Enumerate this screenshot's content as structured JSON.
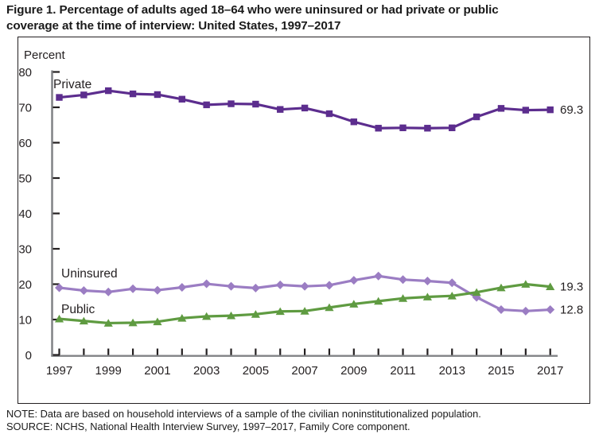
{
  "figure": {
    "title_line1": "Figure 1. Percentage of adults aged 18–64 who were uninsured or had private or public",
    "title_line2": "coverage at the time of interview: United States, 1997–2017",
    "note": "NOTE: Data are based on household interviews of a sample of the civilian noninstitutionalized population.",
    "source": "SOURCE: NCHS, National Health Interview Survey, 1997–2017, Family Core component."
  },
  "chart_data": {
    "type": "line",
    "y_axis_label": "Percent",
    "ylim": [
      0,
      80
    ],
    "yticks": [
      0,
      10,
      20,
      30,
      40,
      50,
      60,
      70,
      80
    ],
    "x": [
      1997,
      1998,
      1999,
      2000,
      2001,
      2002,
      2003,
      2004,
      2005,
      2006,
      2007,
      2008,
      2009,
      2010,
      2011,
      2012,
      2013,
      2014,
      2015,
      2016,
      2017
    ],
    "xtick_labels": [
      "1997",
      "1999",
      "2001",
      "2003",
      "2005",
      "2007",
      "2009",
      "2011",
      "2013",
      "2015",
      "2017"
    ],
    "grid": false,
    "legend_position": "inline-labels",
    "axis_color": "#808285",
    "tick_color": "#231f20",
    "text_color": "#231f20",
    "series": [
      {
        "name": "Private",
        "marker": "square",
        "color": "#5c2d8e",
        "end_label": "69.3",
        "values": [
          72.8,
          73.5,
          74.7,
          73.8,
          73.6,
          72.3,
          70.7,
          71.0,
          70.9,
          69.4,
          69.8,
          68.2,
          65.9,
          64.1,
          64.2,
          64.1,
          64.2,
          67.3,
          69.7,
          69.2,
          69.3
        ]
      },
      {
        "name": "Uninsured",
        "marker": "diamond",
        "color": "#9b7dc3",
        "end_label": "12.8",
        "values": [
          19.0,
          18.2,
          17.8,
          18.7,
          18.3,
          19.1,
          20.1,
          19.4,
          18.9,
          19.8,
          19.4,
          19.7,
          21.1,
          22.3,
          21.3,
          20.9,
          20.4,
          16.3,
          12.8,
          12.4,
          12.8
        ]
      },
      {
        "name": "Public",
        "marker": "triangle",
        "color": "#5f9b41",
        "end_label": "19.3",
        "values": [
          10.2,
          9.6,
          9.0,
          9.1,
          9.4,
          10.4,
          10.9,
          11.1,
          11.5,
          12.3,
          12.4,
          13.4,
          14.4,
          15.2,
          16.0,
          16.4,
          16.7,
          17.7,
          19.0,
          20.0,
          19.3
        ]
      }
    ]
  }
}
